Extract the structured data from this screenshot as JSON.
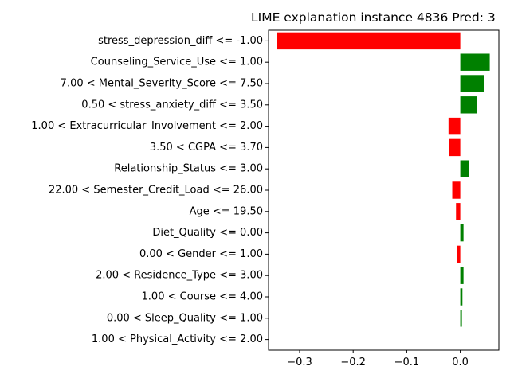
{
  "chart_data": {
    "type": "bar",
    "orientation": "horizontal",
    "title": "LIME explanation instance 4836 Pred: 3",
    "xlabel": "",
    "ylabel": "",
    "xlim": [
      -0.358,
      0.072
    ],
    "x_ticks": [
      -0.3,
      -0.2,
      -0.1,
      0.0
    ],
    "x_tick_labels": [
      "−0.3",
      "−0.2",
      "−0.1",
      "0.0"
    ],
    "grid": false,
    "legend": "none",
    "colors": {
      "positive": "#008000",
      "negative": "#ff0000"
    },
    "categories": [
      "stress_depression_diff <= -1.00",
      "Counseling_Service_Use <= 1.00",
      "7.00 < Mental_Severity_Score <= 7.50",
      "0.50 < stress_anxiety_diff <= 3.50",
      "1.00 < Extracurricular_Involvement <= 2.00",
      "3.50 < CGPA <= 3.70",
      "Relationship_Status <= 3.00",
      "22.00 < Semester_Credit_Load <= 26.00",
      "Age <= 19.50",
      "Diet_Quality <= 0.00",
      "0.00 < Gender <= 1.00",
      "2.00 < Residence_Type <= 3.00",
      "1.00 < Course <= 4.00",
      "0.00 < Sleep_Quality <= 1.00",
      "1.00 < Physical_Activity <= 2.00"
    ],
    "values": [
      -0.342,
      0.055,
      0.045,
      0.031,
      -0.022,
      -0.021,
      0.016,
      -0.015,
      -0.008,
      0.006,
      -0.006,
      0.006,
      0.004,
      0.003,
      0.0
    ]
  }
}
